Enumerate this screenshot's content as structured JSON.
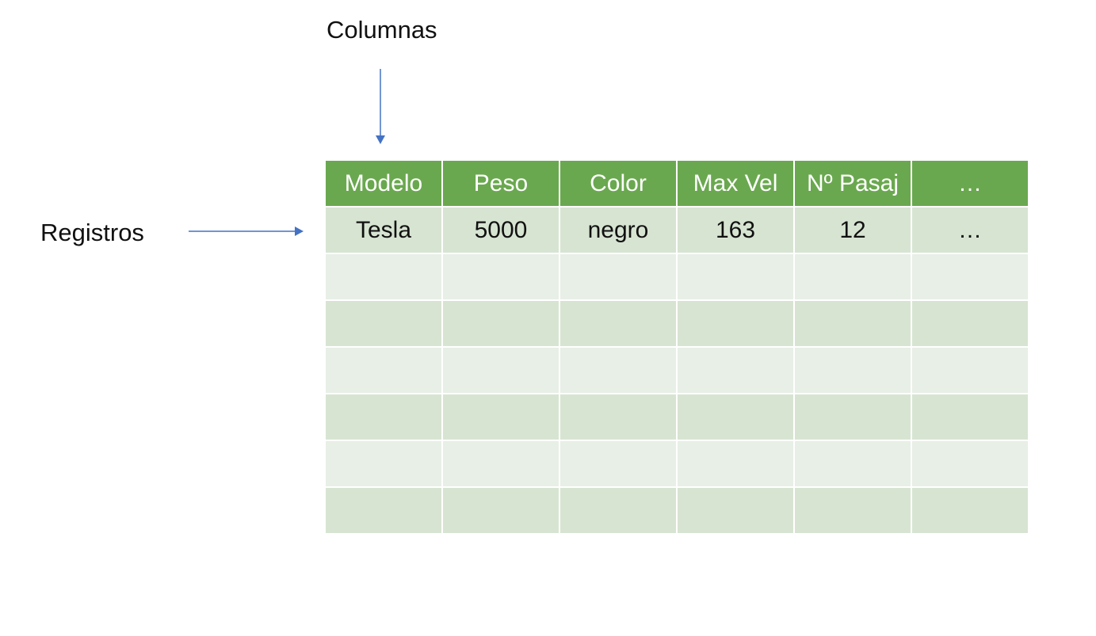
{
  "labels": {
    "columnas": "Columnas",
    "registros": "Registros"
  },
  "table": {
    "headers": [
      "Modelo",
      "Peso",
      "Color",
      "Max Vel",
      "Nº Pasaj",
      "…"
    ],
    "rows": [
      [
        "Tesla",
        "5000",
        "negro",
        "163",
        "12",
        "…"
      ],
      [
        "",
        "",
        "",
        "",
        "",
        ""
      ],
      [
        "",
        "",
        "",
        "",
        "",
        ""
      ],
      [
        "",
        "",
        "",
        "",
        "",
        ""
      ],
      [
        "",
        "",
        "",
        "",
        "",
        ""
      ],
      [
        "",
        "",
        "",
        "",
        "",
        ""
      ],
      [
        "",
        "",
        "",
        "",
        "",
        ""
      ]
    ]
  },
  "colors": {
    "header_bg": "#6aa84f",
    "row_a": "#d7e4d2",
    "row_b": "#e8efe6",
    "arrow": "#4472c4"
  },
  "icons": {
    "columnas_arrow": "arrow-down-icon",
    "registros_arrow": "arrow-right-icon"
  }
}
